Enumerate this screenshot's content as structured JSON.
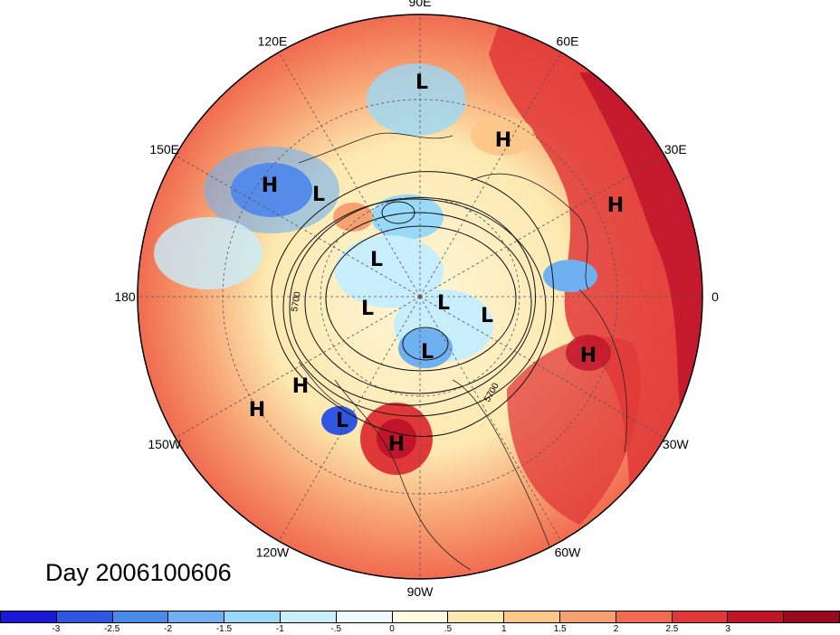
{
  "map": {
    "longitude_labels": [
      {
        "text": "90E",
        "angle": 90
      },
      {
        "text": "60E",
        "angle": 60
      },
      {
        "text": "30E",
        "angle": 30
      },
      {
        "text": "0",
        "angle": 0
      },
      {
        "text": "30W",
        "angle": -30
      },
      {
        "text": "60W",
        "angle": -60
      },
      {
        "text": "90W",
        "angle": -90
      },
      {
        "text": "120W",
        "angle": -120
      },
      {
        "text": "150W",
        "angle": -150
      },
      {
        "text": "180",
        "angle": 180
      },
      {
        "text": "150E",
        "angle": 150
      },
      {
        "text": "120E",
        "angle": 120
      }
    ],
    "pressure_centers": [
      {
        "type": "L",
        "name": "low-siberia-north"
      },
      {
        "type": "H",
        "name": "high-scandinavia"
      },
      {
        "type": "H",
        "name": "high-europe-east"
      },
      {
        "type": "H",
        "name": "high-pacific-west"
      },
      {
        "type": "L",
        "name": "low-pacific-west"
      },
      {
        "type": "L",
        "name": "low-arctic-1"
      },
      {
        "type": "L",
        "name": "low-arctic-2"
      },
      {
        "type": "L",
        "name": "low-arctic-3"
      },
      {
        "type": "L",
        "name": "low-arctic-4"
      },
      {
        "type": "L",
        "name": "low-canada"
      },
      {
        "type": "H",
        "name": "high-atlantic"
      },
      {
        "type": "H",
        "name": "high-pacific-1"
      },
      {
        "type": "H",
        "name": "high-pacific-2"
      },
      {
        "type": "L",
        "name": "low-alaska-south"
      },
      {
        "type": "H",
        "name": "high-north-america"
      }
    ],
    "contour_labels": [
      "5700",
      "5700"
    ],
    "colors": {
      "ocean_warm": "#f06b50",
      "deep_warm": "#c0142a",
      "cold": "#3b6fd8",
      "neutral": "#fdf6d8"
    }
  },
  "caption": {
    "day_label": "Day 2006100606"
  },
  "colorbar": {
    "colors": [
      "#1a1ad6",
      "#2f56e0",
      "#4a8ae8",
      "#6fb0f0",
      "#9ad8f8",
      "#c8eefc",
      "#eefaff",
      "#fffbe0",
      "#fde9b0",
      "#fbc88a",
      "#f7a070",
      "#f06b50",
      "#e03838",
      "#c0142a",
      "#9a0a1e"
    ],
    "ticks": [
      "-3",
      "-2.5",
      "-2",
      "-1.5",
      "-1",
      "-.5",
      "0",
      ".5",
      "1",
      "1.5",
      "2",
      "2.5",
      "3"
    ]
  }
}
